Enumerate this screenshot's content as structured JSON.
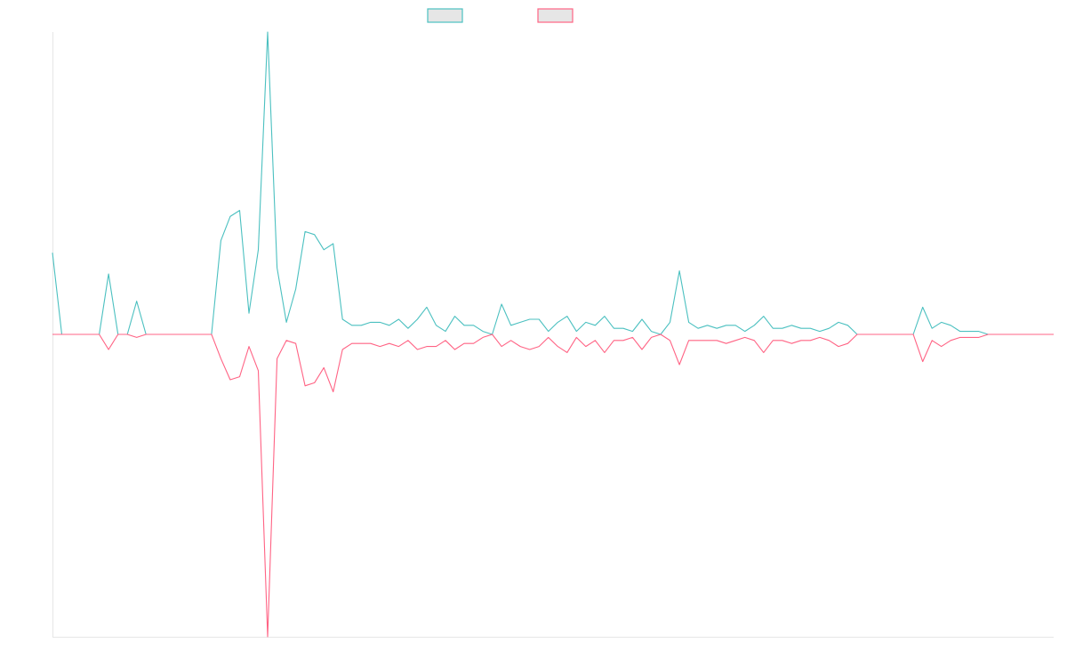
{
  "chart_data": {
    "type": "line",
    "title": "",
    "xlabel": "",
    "ylabel": "",
    "x_tick_labels": [],
    "y_tick_labels": [],
    "grid": false,
    "legend_position": "top-center",
    "ylim": [
      -1,
      1
    ],
    "series": [
      {
        "color": "#4bc0c0",
        "values": [
          0.27,
          0,
          0,
          0,
          0,
          0,
          0.2,
          0,
          0,
          0.11,
          0,
          0,
          0,
          0,
          0,
          0,
          0,
          0,
          0.31,
          0.39,
          0.41,
          0.07,
          0.28,
          1.0,
          0.22,
          0.04,
          0.15,
          0.34,
          0.33,
          0.28,
          0.3,
          0.05,
          0.03,
          0.03,
          0.04,
          0.04,
          0.03,
          0.05,
          0.02,
          0.05,
          0.09,
          0.03,
          0.01,
          0.06,
          0.03,
          0.03,
          0.01,
          0.0,
          0.1,
          0.03,
          0.04,
          0.05,
          0.05,
          0.01,
          0.04,
          0.06,
          0.01,
          0.04,
          0.03,
          0.06,
          0.02,
          0.02,
          0.01,
          0.05,
          0.01,
          0.0,
          0.04,
          0.21,
          0.04,
          0.02,
          0.03,
          0.02,
          0.03,
          0.03,
          0.01,
          0.03,
          0.06,
          0.02,
          0.02,
          0.03,
          0.02,
          0.02,
          0.01,
          0.02,
          0.04,
          0.03,
          0.0,
          0.0,
          0.0,
          0.0,
          0.0,
          0.0,
          0.0,
          0.09,
          0.02,
          0.04,
          0.03,
          0.01,
          0.01,
          0.01,
          0.0,
          0.0,
          0.0,
          0.0,
          0.0,
          0.0,
          0.0,
          0.0
        ]
      },
      {
        "color": "#ff6384",
        "values": [
          0,
          0,
          0,
          0,
          0,
          0,
          -0.05,
          0,
          0,
          -0.01,
          0,
          0,
          0,
          0,
          0,
          0,
          0,
          0,
          -0.08,
          -0.15,
          -0.14,
          -0.04,
          -0.12,
          -1.0,
          -0.08,
          -0.02,
          -0.03,
          -0.17,
          -0.16,
          -0.11,
          -0.19,
          -0.05,
          -0.03,
          -0.03,
          -0.03,
          -0.04,
          -0.03,
          -0.04,
          -0.02,
          -0.05,
          -0.04,
          -0.04,
          -0.02,
          -0.05,
          -0.03,
          -0.03,
          -0.01,
          -0.0,
          -0.04,
          -0.02,
          -0.04,
          -0.05,
          -0.04,
          -0.01,
          -0.04,
          -0.06,
          -0.01,
          -0.04,
          -0.02,
          -0.06,
          -0.02,
          -0.02,
          -0.01,
          -0.05,
          -0.01,
          -0.0,
          -0.02,
          -0.1,
          -0.02,
          -0.02,
          -0.02,
          -0.02,
          -0.03,
          -0.02,
          -0.01,
          -0.02,
          -0.06,
          -0.02,
          -0.02,
          -0.03,
          -0.02,
          -0.02,
          -0.01,
          -0.02,
          -0.04,
          -0.03,
          -0.0,
          -0.0,
          -0.0,
          -0.0,
          -0.0,
          -0.0,
          -0.0,
          -0.09,
          -0.02,
          -0.04,
          -0.02,
          -0.01,
          -0.01,
          -0.01,
          -0.0,
          -0.0,
          -0.0,
          -0.0,
          -0.0,
          -0.0,
          -0.0,
          -0.0
        ]
      }
    ]
  }
}
